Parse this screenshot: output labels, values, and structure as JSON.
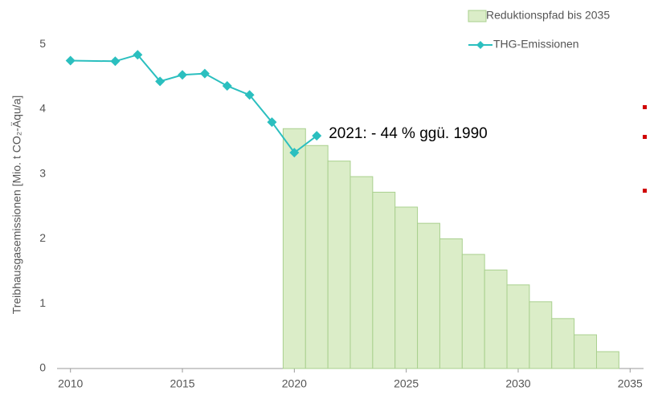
{
  "chart_data": {
    "type": "combo",
    "y_label": "Treibhausgasemissionen [Mio. t CO₂-Äqu/a]",
    "annotation": "2021: - 44 % ggü. 1990",
    "xlim": [
      2009.4,
      2035.6
    ],
    "xticks": [
      2010,
      2015,
      2020,
      2025,
      2030,
      2035
    ],
    "ylim": [
      0,
      5.4
    ],
    "yticks": [
      0,
      1,
      2,
      3,
      4,
      5
    ],
    "legend": "top-right",
    "series": [
      {
        "name": "Reduktionspfad bis 2035",
        "kind": "bar",
        "color": "#dbedc8",
        "x": [
          2020,
          2021,
          2022,
          2023,
          2024,
          2025,
          2026,
          2027,
          2028,
          2029,
          2030,
          2031,
          2032,
          2033,
          2034
        ],
        "values": [
          3.7,
          3.44,
          3.2,
          2.96,
          2.72,
          2.49,
          2.24,
          2.0,
          1.76,
          1.52,
          1.29,
          1.03,
          0.77,
          0.52,
          0.26
        ]
      },
      {
        "name": "THG-Emissionen",
        "kind": "line",
        "color": "#2bbfbf",
        "x": [
          2010,
          2012,
          2013,
          2014,
          2015,
          2016,
          2017,
          2018,
          2019,
          2020,
          2021
        ],
        "values": [
          4.75,
          4.74,
          4.84,
          4.43,
          4.53,
          4.55,
          4.36,
          4.22,
          3.8,
          3.33,
          3.59
        ]
      }
    ]
  }
}
